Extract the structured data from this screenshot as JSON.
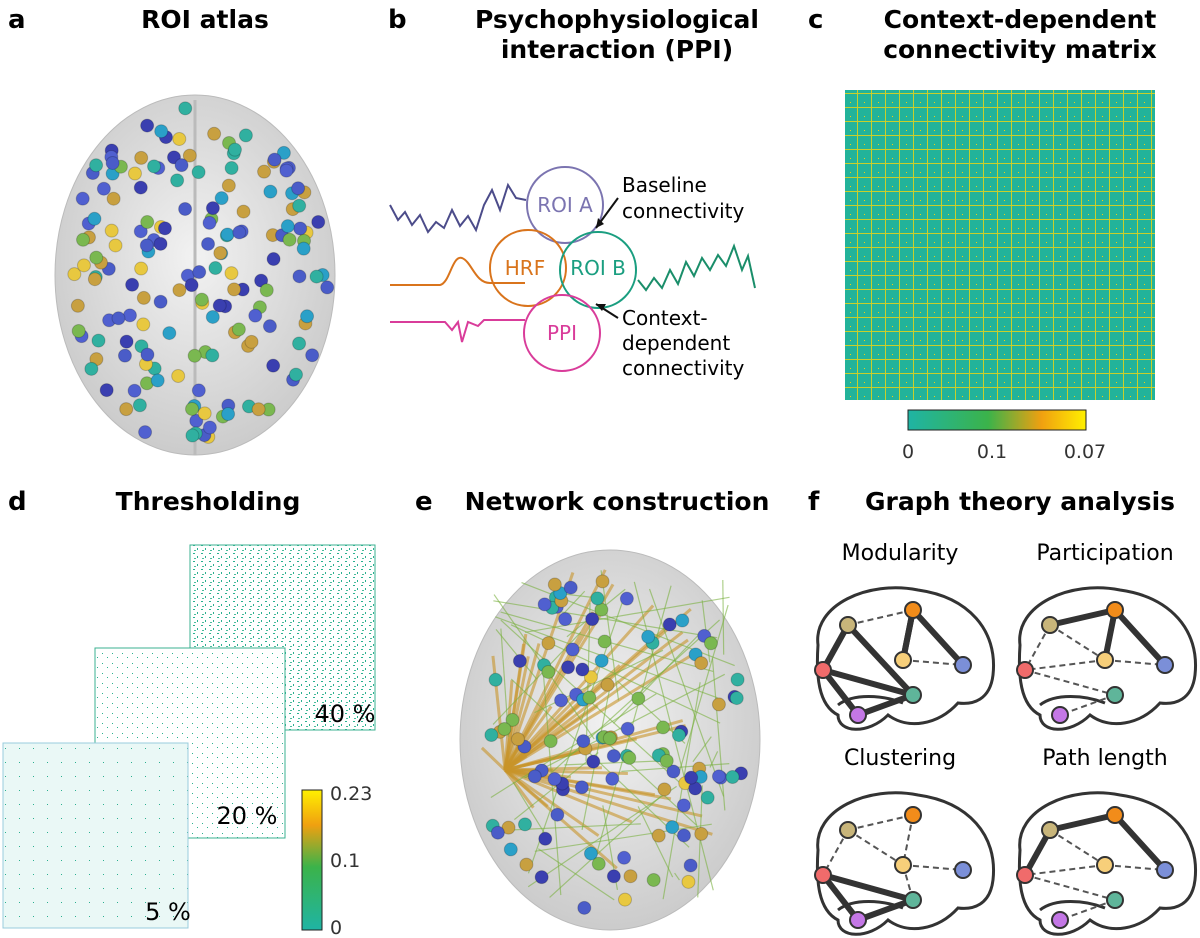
{
  "panels": [
    {
      "letter": "a",
      "title": [
        "ROI atlas"
      ]
    },
    {
      "letter": "b",
      "title": [
        "Psychophysiological",
        "interaction (PPI)"
      ]
    },
    {
      "letter": "c",
      "title": [
        "Context-dependent",
        "connectivity matrix"
      ]
    },
    {
      "letter": "d",
      "title": [
        "Thresholding"
      ]
    },
    {
      "letter": "e",
      "title": [
        "Network construction"
      ]
    },
    {
      "letter": "f",
      "title": [
        "Graph theory analysis"
      ]
    }
  ],
  "ppi": {
    "rois": [
      "ROI A",
      "HRF",
      "ROI B",
      "PPI"
    ],
    "annotations": [
      [
        "Baseline",
        "connectivity"
      ],
      [
        "Context-",
        "dependent",
        "connectivity"
      ]
    ]
  },
  "matrix_colorbar": [
    "0",
    "0.1",
    "0.07"
  ],
  "thresholds": [
    "40 %",
    "20 %",
    "5 %"
  ],
  "threshold_colorbar": [
    "0.23",
    "0.1",
    "0"
  ],
  "graphs": [
    "Modularity",
    "Participation",
    "Clustering",
    "Path length"
  ]
}
